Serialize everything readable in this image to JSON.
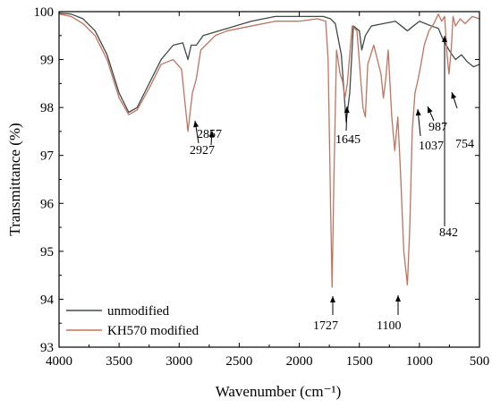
{
  "chart_data": {
    "type": "line",
    "xlabel": "Wavenumber (cm⁻¹)",
    "ylabel": "Transmittance (%)",
    "xlim": [
      4000,
      500
    ],
    "ylim": [
      93,
      100
    ],
    "x_ticks": [
      4000,
      3500,
      3000,
      2500,
      2000,
      1500,
      1000,
      500
    ],
    "y_ticks": [
      93,
      94,
      95,
      96,
      97,
      98,
      99,
      100
    ],
    "legend_position": "bottom-left",
    "series": [
      {
        "name": "unmodified",
        "color": "#3f4a44",
        "points": [
          [
            4000,
            99.97
          ],
          [
            3900,
            99.95
          ],
          [
            3800,
            99.85
          ],
          [
            3700,
            99.6
          ],
          [
            3600,
            99.1
          ],
          [
            3500,
            98.3
          ],
          [
            3420,
            97.9
          ],
          [
            3350,
            98.0
          ],
          [
            3250,
            98.5
          ],
          [
            3150,
            99.0
          ],
          [
            3050,
            99.3
          ],
          [
            2970,
            99.35
          ],
          [
            2927,
            99.0
          ],
          [
            2900,
            99.3
          ],
          [
            2857,
            99.3
          ],
          [
            2800,
            99.5
          ],
          [
            2600,
            99.65
          ],
          [
            2400,
            99.8
          ],
          [
            2200,
            99.9
          ],
          [
            2000,
            99.9
          ],
          [
            1800,
            99.9
          ],
          [
            1740,
            99.85
          ],
          [
            1700,
            99.75
          ],
          [
            1650,
            99.1
          ],
          [
            1610,
            97.7
          ],
          [
            1580,
            98.3
          ],
          [
            1550,
            99.7
          ],
          [
            1500,
            99.6
          ],
          [
            1480,
            99.2
          ],
          [
            1450,
            99.5
          ],
          [
            1400,
            99.7
          ],
          [
            1300,
            99.75
          ],
          [
            1200,
            99.8
          ],
          [
            1150,
            99.7
          ],
          [
            1100,
            99.6
          ],
          [
            1050,
            99.7
          ],
          [
            1000,
            99.8
          ],
          [
            900,
            99.7
          ],
          [
            842,
            99.65
          ],
          [
            800,
            99.4
          ],
          [
            754,
            99.2
          ],
          [
            700,
            99.0
          ],
          [
            650,
            99.1
          ],
          [
            600,
            98.95
          ],
          [
            550,
            98.85
          ],
          [
            500,
            98.9
          ]
        ]
      },
      {
        "name": "KH570 modified",
        "color": "#c0735f",
        "points": [
          [
            4000,
            99.95
          ],
          [
            3900,
            99.9
          ],
          [
            3800,
            99.75
          ],
          [
            3700,
            99.5
          ],
          [
            3600,
            99.0
          ],
          [
            3500,
            98.2
          ],
          [
            3420,
            97.85
          ],
          [
            3350,
            97.95
          ],
          [
            3250,
            98.4
          ],
          [
            3150,
            98.9
          ],
          [
            3050,
            99.0
          ],
          [
            2980,
            98.8
          ],
          [
            2927,
            97.5
          ],
          [
            2890,
            98.3
          ],
          [
            2857,
            98.6
          ],
          [
            2820,
            99.2
          ],
          [
            2700,
            99.5
          ],
          [
            2600,
            99.6
          ],
          [
            2400,
            99.7
          ],
          [
            2200,
            99.8
          ],
          [
            2000,
            99.8
          ],
          [
            1850,
            99.85
          ],
          [
            1780,
            99.8
          ],
          [
            1760,
            99.0
          ],
          [
            1740,
            96.0
          ],
          [
            1727,
            94.25
          ],
          [
            1712,
            96.5
          ],
          [
            1690,
            99.2
          ],
          [
            1660,
            98.7
          ],
          [
            1640,
            98.55
          ],
          [
            1620,
            98.2
          ],
          [
            1600,
            98.5
          ],
          [
            1560,
            99.7
          ],
          [
            1520,
            99.6
          ],
          [
            1470,
            98.0
          ],
          [
            1450,
            97.8
          ],
          [
            1430,
            98.9
          ],
          [
            1380,
            99.3
          ],
          [
            1320,
            98.7
          ],
          [
            1300,
            98.2
          ],
          [
            1280,
            98.6
          ],
          [
            1260,
            99.2
          ],
          [
            1230,
            97.8
          ],
          [
            1205,
            97.1
          ],
          [
            1180,
            97.8
          ],
          [
            1160,
            96.8
          ],
          [
            1130,
            95.0
          ],
          [
            1100,
            94.3
          ],
          [
            1080,
            95.5
          ],
          [
            1060,
            97.5
          ],
          [
            1037,
            98.3
          ],
          [
            1010,
            98.6
          ],
          [
            987,
            98.9
          ],
          [
            960,
            99.3
          ],
          [
            920,
            99.6
          ],
          [
            880,
            99.75
          ],
          [
            842,
            99.95
          ],
          [
            815,
            99.8
          ],
          [
            790,
            99.9
          ],
          [
            770,
            99.1
          ],
          [
            754,
            98.7
          ],
          [
            735,
            99.2
          ],
          [
            720,
            99.9
          ],
          [
            700,
            99.7
          ],
          [
            660,
            99.85
          ],
          [
            620,
            99.75
          ],
          [
            560,
            99.9
          ],
          [
            500,
            99.85
          ]
        ]
      }
    ],
    "annotations": [
      {
        "label": "2927",
        "x": 2927,
        "y": 97.5
      },
      {
        "label": "2857",
        "x": 2857,
        "y": 98.6
      },
      {
        "label": "1645",
        "x": 1640,
        "y": 98.55
      },
      {
        "label": "1727",
        "x": 1727,
        "y": 94.25
      },
      {
        "label": "1100",
        "x": 1100,
        "y": 94.3
      },
      {
        "label": "1037",
        "x": 1037,
        "y": 98.3
      },
      {
        "label": "987",
        "x": 987,
        "y": 98.9
      },
      {
        "label": "842",
        "x": 842,
        "y": 99.95
      },
      {
        "label": "754",
        "x": 754,
        "y": 98.7
      }
    ]
  }
}
